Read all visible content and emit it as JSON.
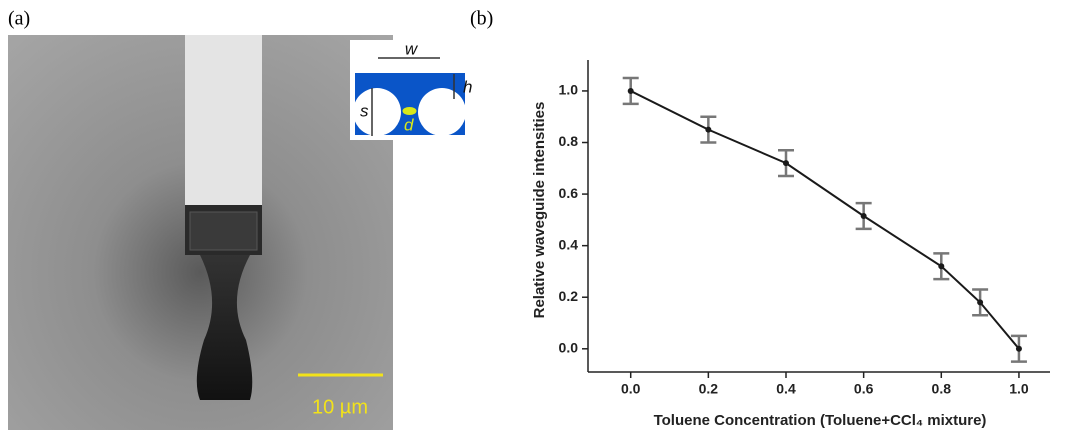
{
  "panels": {
    "a": {
      "label": "(a)",
      "inset": {
        "w": "w",
        "h": "h",
        "s": "s",
        "d": "d"
      },
      "scale_bar": "10 µm"
    },
    "b": {
      "label": "(b)"
    }
  },
  "chart_data": {
    "type": "line",
    "x_label": "Toluene Concentration (Toluene+CCl₄ mixture)",
    "y_label": "Relative waveguide intensities",
    "x": [
      0.0,
      0.2,
      0.4,
      0.6,
      0.8,
      0.9,
      1.0
    ],
    "values": [
      1.0,
      0.85,
      0.72,
      0.515,
      0.32,
      0.18,
      0.0
    ],
    "errors": [
      0.05,
      0.05,
      0.05,
      0.05,
      0.05,
      0.05,
      0.05
    ],
    "color": "#1a1a1a",
    "error_color": "#777777",
    "xlim": [
      -0.11,
      1.08
    ],
    "xticks": [
      {
        "value": 0,
        "label": "0.0"
      },
      {
        "value": 0.2,
        "label": "0.2"
      },
      {
        "value": 0.4,
        "label": "0.4"
      },
      {
        "value": 0.6,
        "label": "0.6"
      },
      {
        "value": 0.8,
        "label": "0.8"
      },
      {
        "value": 1,
        "label": "1.0"
      }
    ],
    "ylim": [
      -0.09,
      1.12
    ],
    "yticks": [
      {
        "value": 0,
        "label": "0.0"
      },
      {
        "value": 0.2,
        "label": "0.2"
      },
      {
        "value": 0.4,
        "label": "0.4"
      },
      {
        "value": 0.6,
        "label": "0.6"
      },
      {
        "value": 0.8,
        "label": "0.8"
      },
      {
        "value": 1,
        "label": "1.0"
      }
    ]
  }
}
